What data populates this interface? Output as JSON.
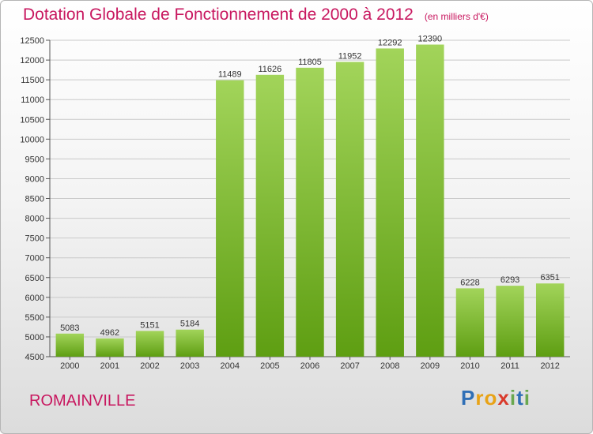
{
  "title": "Dotation Globale de Fonctionnement de 2000 à 2012",
  "unit_note": "(en milliers d'€)",
  "commune": "ROMAINVILLE",
  "logo": {
    "letters": [
      "P",
      "r",
      "o",
      "x",
      "i",
      "t",
      "i"
    ],
    "colors": [
      "#2f6fb6",
      "#e8a317",
      "#e8a317",
      "#d93a2b",
      "#6aa84f",
      "#2f6fb6",
      "#6aa84f"
    ]
  },
  "colors": {
    "bar_top": "#a2d45a",
    "bar_bottom": "#5e9e12",
    "title": "#c8175f"
  },
  "chart_data": {
    "type": "bar",
    "categories": [
      "2000",
      "2001",
      "2002",
      "2003",
      "2004",
      "2005",
      "2006",
      "2007",
      "2008",
      "2009",
      "2010",
      "2011",
      "2012"
    ],
    "values": [
      5083,
      4962,
      5151,
      5184,
      11489,
      11626,
      11805,
      11952,
      12292,
      12390,
      6228,
      6293,
      6351
    ],
    "title": "Dotation Globale de Fonctionnement de 2000 à 2012",
    "xlabel": "",
    "ylabel": "",
    "ylim": [
      4500,
      12500
    ],
    "yticks": [
      4500,
      5000,
      5500,
      6000,
      6500,
      7000,
      7500,
      8000,
      8500,
      9000,
      9500,
      10000,
      10500,
      11000,
      11500,
      12000,
      12500
    ],
    "grid": true
  }
}
